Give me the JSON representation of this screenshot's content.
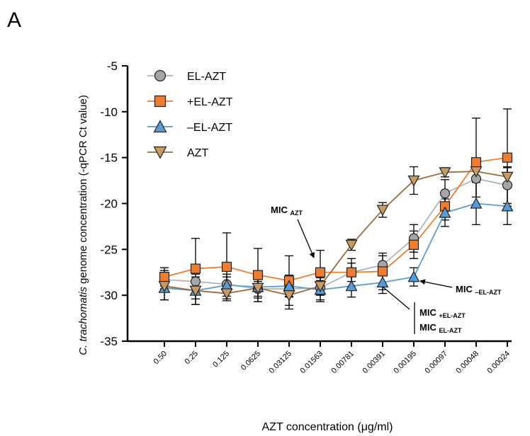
{
  "panel_label": "A",
  "chart_data": {
    "type": "line",
    "ylabel_italic": "C. trachomatis",
    "ylabel_rest": " genome concentration (-qPCR Ct value)",
    "xlabel": "AZT concentration (μg/ml)",
    "ylim": [
      -35,
      -5
    ],
    "yticks": [
      "-5",
      "-10",
      "-15",
      "-20",
      "-25",
      "-30",
      "-35"
    ],
    "ytick_values": [
      -5,
      -10,
      -15,
      -20,
      -25,
      -30,
      -35
    ],
    "categories": [
      "0.50",
      "0.25",
      "0.125",
      "0.0625",
      "0.03125",
      "0.01563",
      "0.00781",
      "0.00391",
      "0.00195",
      "0.00097",
      "0.00048",
      "0.00024"
    ],
    "legend_position": "top-left",
    "grid": false,
    "series": [
      {
        "name": "EL-AZT",
        "marker": "circle",
        "fill": "#a6a6a6",
        "line": "#b3b3b3",
        "values": [
          -28.3,
          -28.5,
          -28.8,
          -29.3,
          -29.3,
          -29.2,
          -27.5,
          -26.7,
          -23.8,
          -18.9,
          -17.3,
          -18.0
        ],
        "err": [
          1.0,
          0.8,
          0.8,
          0.8,
          0.8,
          0.8,
          1.0,
          1.0,
          1.5,
          1.5,
          2.0,
          2.0
        ]
      },
      {
        "name": "+EL-AZT",
        "marker": "square",
        "fill": "#ed7d31",
        "line": "#ed7d31",
        "values": [
          -28.0,
          -27.1,
          -26.9,
          -27.8,
          -28.4,
          -27.5,
          -27.5,
          -27.4,
          -24.5,
          -20.3,
          -15.5,
          -15.0
        ],
        "err": [
          1.0,
          3.3,
          3.7,
          2.9,
          2.7,
          2.4,
          1.5,
          2.0,
          1.5,
          1.5,
          4.8,
          5.3
        ]
      },
      {
        "name": "–EL-AZT",
        "marker": "triangle-up",
        "fill": "#5b9bd5",
        "line": "#5b9bd5",
        "values": [
          -29.2,
          -29.5,
          -28.9,
          -29.1,
          -29.0,
          -29.4,
          -29.0,
          -28.6,
          -28.0,
          -21.0,
          -20.0,
          -20.3
        ],
        "err": [
          1.3,
          1.5,
          1.2,
          1.2,
          1.2,
          1.3,
          1.2,
          1.2,
          1.0,
          1.5,
          2.3,
          2.0
        ]
      },
      {
        "name": "AZT",
        "marker": "triangle-down",
        "fill": "#c89a64",
        "line": "#9e6b3b",
        "values": [
          -29.0,
          -29.5,
          -29.8,
          -29.2,
          -30.0,
          -29.0,
          -24.5,
          -20.7,
          -17.5,
          -16.6,
          -16.5,
          -17.1
        ],
        "err": [
          1.5,
          1.5,
          0.6,
          1.5,
          1.5,
          1.5,
          0.6,
          0.8,
          1.5,
          0.5,
          1.0,
          1.0
        ]
      }
    ],
    "annotations": {
      "mic_azt": {
        "main": "MIC",
        "sub": "AZT"
      },
      "mic_minus": {
        "main": "MIC",
        "sub": "–EL-AZT"
      },
      "mic_plus": {
        "main": "MIC",
        "sub": "+EL-AZT"
      },
      "mic_el": {
        "main": "MIC",
        "sub": "EL-AZT"
      }
    }
  }
}
